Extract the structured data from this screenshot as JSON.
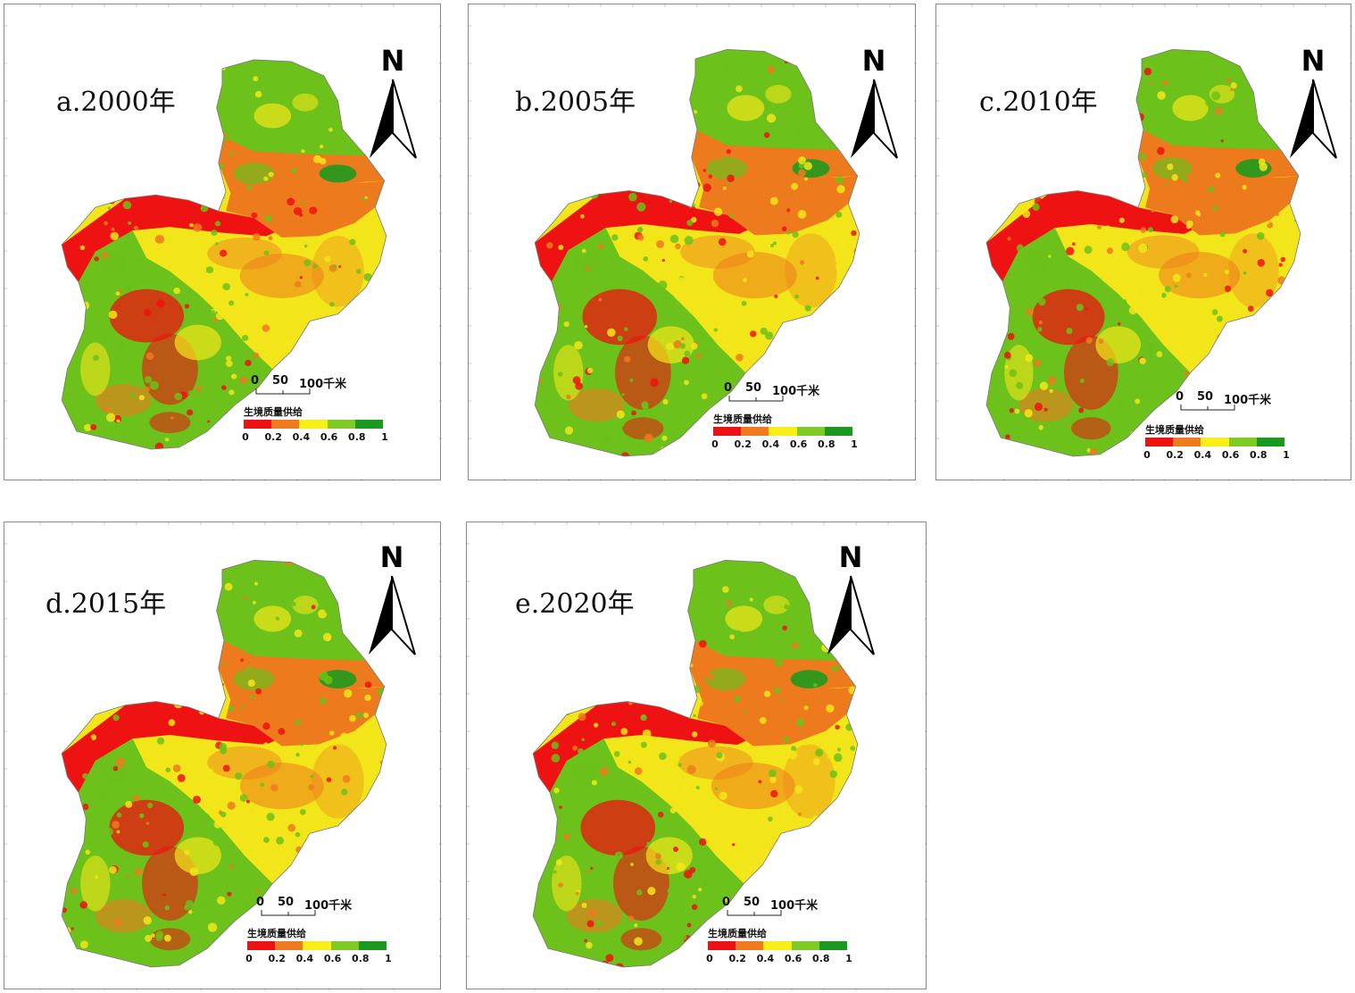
{
  "panels": [
    {
      "id": "a",
      "title": "a.2000年"
    },
    {
      "id": "b",
      "title": "b.2005年"
    },
    {
      "id": "c",
      "title": "c.2010年"
    },
    {
      "id": "d",
      "title": "d.2015年"
    },
    {
      "id": "e",
      "title": "e.2020年"
    }
  ],
  "north_label": "N",
  "scale": {
    "labels": [
      "0",
      "50",
      "100千米"
    ]
  },
  "legend": {
    "title": "生境质量供给",
    "ticks": [
      "0",
      "0.2",
      "0.4",
      "0.6",
      "0.8",
      "1"
    ],
    "colors": [
      "#ee1111",
      "#f07a1e",
      "#f7ef15",
      "#a2d52a",
      "#6cc11a",
      "#199a1e"
    ]
  },
  "map_colors": {
    "high": "#6cc11a",
    "dark_high": "#1e9a1e",
    "medium": "#f2e61a",
    "low": "#ee7a1e",
    "very_low": "#ee1212"
  }
}
